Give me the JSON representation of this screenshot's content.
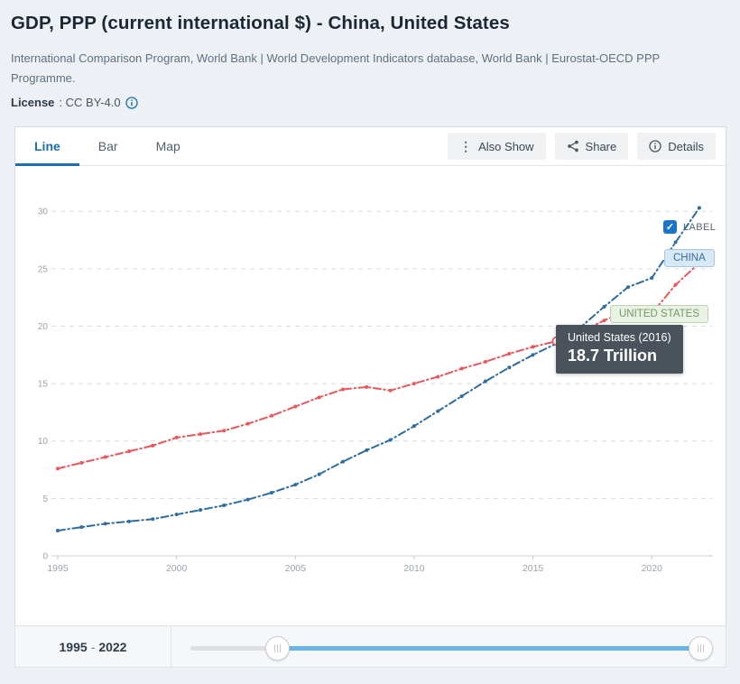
{
  "page": {
    "title": "GDP, PPP (current international $) - China, United States",
    "source": "International Comparison Program, World Bank | World Development Indicators database, World Bank | Eurostat-OECD PPP Programme.",
    "license_label": "License",
    "license_value": ": CC BY-4.0"
  },
  "tabs": [
    {
      "label": "Line",
      "active": true
    },
    {
      "label": "Bar",
      "active": false
    },
    {
      "label": "Map",
      "active": false
    }
  ],
  "toolbar": {
    "also_show": "Also Show",
    "share": "Share",
    "details": "Details"
  },
  "overlay": {
    "label_checkbox": "LABEL",
    "checkbox_checked": "✓",
    "china_tag": "CHINA",
    "us_tag": "UNITED STATES",
    "tooltip_title": "United States (2016)",
    "tooltip_value": "18.7 Trillion"
  },
  "slider": {
    "start": "1995",
    "sep": "-",
    "end": "2022"
  },
  "chart_data": {
    "type": "line",
    "x": [
      1995,
      1996,
      1997,
      1998,
      1999,
      2000,
      2001,
      2002,
      2003,
      2004,
      2005,
      2006,
      2007,
      2008,
      2009,
      2010,
      2011,
      2012,
      2013,
      2014,
      2015,
      2016,
      2017,
      2018,
      2019,
      2020,
      2021,
      2022
    ],
    "series": [
      {
        "name": "China",
        "color": "#2e6d9e",
        "values": [
          2.2,
          2.5,
          2.8,
          3.0,
          3.2,
          3.6,
          4.0,
          4.4,
          4.9,
          5.5,
          6.2,
          7.1,
          8.2,
          9.2,
          10.1,
          11.3,
          12.6,
          13.9,
          15.2,
          16.4,
          17.5,
          18.5,
          19.9,
          21.7,
          23.4,
          24.2,
          27.3,
          30.3
        ]
      },
      {
        "name": "United States",
        "color": "#e9565b",
        "values": [
          7.6,
          8.1,
          8.6,
          9.1,
          9.6,
          10.3,
          10.6,
          10.9,
          11.5,
          12.2,
          13.0,
          13.8,
          14.5,
          14.7,
          14.4,
          15.0,
          15.6,
          16.3,
          16.9,
          17.6,
          18.2,
          18.7,
          19.5,
          20.5,
          21.4,
          21.1,
          23.6,
          25.5
        ]
      }
    ],
    "highlight": {
      "series": "United States",
      "year": 2016,
      "value": 18.7
    },
    "y_ticks": [
      0,
      5,
      10,
      15,
      20,
      25,
      30
    ],
    "x_ticks": [
      1995,
      2000,
      2005,
      2010,
      2015,
      2020
    ],
    "ylim": [
      0,
      32
    ],
    "xlim": [
      1995,
      2022
    ],
    "grid": "horizontal-dashed",
    "unit": "Trillion",
    "title": "GDP, PPP (current international $)",
    "xlabel": "",
    "ylabel": ""
  },
  "style": {
    "grid_color": "#d8dbdf",
    "axis_color": "#ccd2d7",
    "tick_text_color": "#9aa3ab",
    "accent_blue": "#1b6fae"
  }
}
